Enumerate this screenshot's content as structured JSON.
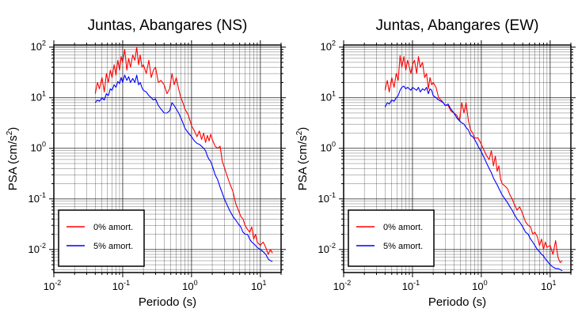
{
  "colors": {
    "undamped": "#ff0000",
    "damped": "#0000ff",
    "grid": "#000000",
    "frame": "#000000"
  },
  "chart_data": [
    {
      "type": "line",
      "title": "Juntas, Abangares (NS)",
      "xlabel": "Periodo (s)",
      "ylabel_main": "PSA (cm/s",
      "ylabel_sup": "2",
      "ylabel_close": ")",
      "xscale": "log",
      "yscale": "log",
      "xlim": [
        0.01,
        20
      ],
      "ylim": [
        0.0035,
        110
      ],
      "xticks": [
        {
          "base": "10",
          "exp": "-2"
        },
        {
          "base": "10",
          "exp": "-1"
        },
        {
          "base": "10",
          "exp": "0"
        },
        {
          "base": "10",
          "exp": "1"
        }
      ],
      "yticks": [
        {
          "base": "10",
          "exp": "-2"
        },
        {
          "base": "10",
          "exp": "-1"
        },
        {
          "base": "10",
          "exp": "0"
        },
        {
          "base": "10",
          "exp": "1"
        },
        {
          "base": "10",
          "exp": "2"
        }
      ],
      "grid": true,
      "legend_position": "bottom-left",
      "series": [
        {
          "name": "0% amort.",
          "color": "#ff0000",
          "x": [
            0.04,
            0.043,
            0.046,
            0.05,
            0.054,
            0.058,
            0.062,
            0.066,
            0.07,
            0.075,
            0.08,
            0.085,
            0.09,
            0.095,
            0.1,
            0.107,
            0.115,
            0.122,
            0.13,
            0.14,
            0.15,
            0.16,
            0.17,
            0.18,
            0.19,
            0.2,
            0.22,
            0.24,
            0.26,
            0.28,
            0.3,
            0.33,
            0.36,
            0.4,
            0.44,
            0.48,
            0.52,
            0.56,
            0.6,
            0.65,
            0.7,
            0.75,
            0.8,
            0.9,
            1.0,
            1.1,
            1.2,
            1.3,
            1.4,
            1.5,
            1.6,
            1.7,
            1.8,
            1.9,
            2.0,
            2.2,
            2.4,
            2.6,
            2.8,
            3.0,
            3.3,
            3.6,
            4.0,
            4.4,
            4.8,
            5.2,
            5.6,
            6.0,
            6.5,
            7.0,
            7.5,
            8.0,
            8.5,
            9.0,
            10.0,
            11.0,
            12.0,
            13.0,
            14.0,
            15.0
          ],
          "y": [
            12,
            20,
            15,
            25,
            13,
            30,
            20,
            35,
            25,
            45,
            28,
            55,
            35,
            65,
            50,
            90,
            35,
            60,
            40,
            70,
            55,
            100,
            45,
            70,
            40,
            45,
            30,
            55,
            25,
            35,
            40,
            20,
            22,
            18,
            12,
            15,
            30,
            18,
            25,
            15,
            10,
            8,
            6,
            4.5,
            2.8,
            2.2,
            1.7,
            2.2,
            1.5,
            2.0,
            1.3,
            1.8,
            1.4,
            1.9,
            1.5,
            1.1,
            1.0,
            1.1,
            0.55,
            0.42,
            0.28,
            0.2,
            0.14,
            0.08,
            0.06,
            0.045,
            0.04,
            0.03,
            0.025,
            0.022,
            0.028,
            0.016,
            0.02,
            0.014,
            0.012,
            0.014,
            0.011,
            0.008,
            0.01,
            0.0085
          ]
        },
        {
          "name": "5% amort.",
          "color": "#0000ff",
          "x": [
            0.04,
            0.043,
            0.046,
            0.05,
            0.054,
            0.058,
            0.062,
            0.066,
            0.07,
            0.075,
            0.08,
            0.085,
            0.09,
            0.095,
            0.1,
            0.107,
            0.115,
            0.122,
            0.13,
            0.14,
            0.15,
            0.16,
            0.17,
            0.18,
            0.19,
            0.2,
            0.22,
            0.24,
            0.26,
            0.28,
            0.3,
            0.33,
            0.36,
            0.4,
            0.44,
            0.48,
            0.52,
            0.56,
            0.6,
            0.65,
            0.7,
            0.75,
            0.8,
            0.9,
            1.0,
            1.1,
            1.2,
            1.3,
            1.4,
            1.5,
            1.6,
            1.7,
            1.8,
            1.9,
            2.0,
            2.2,
            2.4,
            2.6,
            2.8,
            3.0,
            3.3,
            3.6,
            4.0,
            4.4,
            4.8,
            5.2,
            5.6,
            6.0,
            6.5,
            7.0,
            7.5,
            8.0,
            8.5,
            9.0,
            10.0,
            11.0,
            12.0,
            13.0,
            14.0,
            15.0
          ],
          "y": [
            8,
            9,
            8.5,
            10,
            9,
            12,
            11,
            15,
            14,
            18,
            16,
            21,
            19,
            25,
            20,
            28,
            22,
            26,
            20,
            24,
            20,
            28,
            18,
            20,
            16,
            14,
            13,
            11,
            10,
            9,
            9.5,
            7,
            6,
            5,
            5,
            5.5,
            8,
            7,
            6,
            5,
            4,
            3.2,
            2.5,
            2,
            1.7,
            1.4,
            1.25,
            1.2,
            1.1,
            1.0,
            0.9,
            0.7,
            0.6,
            0.55,
            0.45,
            0.3,
            0.24,
            0.17,
            0.13,
            0.1,
            0.075,
            0.058,
            0.045,
            0.038,
            0.032,
            0.028,
            0.022,
            0.02,
            0.02,
            0.016,
            0.014,
            0.013,
            0.012,
            0.011,
            0.01,
            0.009,
            0.008,
            0.0065,
            0.006,
            0.0058
          ]
        }
      ]
    },
    {
      "type": "line",
      "title": "Juntas, Abangares (EW)",
      "xlabel": "Periodo (s)",
      "ylabel_main": "PSA (cm/s",
      "ylabel_sup": "2",
      "ylabel_close": ")",
      "xscale": "log",
      "yscale": "log",
      "xlim": [
        0.01,
        20
      ],
      "ylim": [
        0.0035,
        110
      ],
      "xticks": [
        {
          "base": "10",
          "exp": "-2"
        },
        {
          "base": "10",
          "exp": "-1"
        },
        {
          "base": "10",
          "exp": "0"
        },
        {
          "base": "10",
          "exp": "1"
        }
      ],
      "yticks": [
        {
          "base": "10",
          "exp": "-2"
        },
        {
          "base": "10",
          "exp": "-1"
        },
        {
          "base": "10",
          "exp": "0"
        },
        {
          "base": "10",
          "exp": "1"
        },
        {
          "base": "10",
          "exp": "2"
        }
      ],
      "grid": true,
      "legend_position": "bottom-left",
      "series": [
        {
          "name": "0% amort.",
          "color": "#ff0000",
          "x": [
            0.04,
            0.043,
            0.046,
            0.05,
            0.054,
            0.058,
            0.062,
            0.066,
            0.07,
            0.075,
            0.08,
            0.085,
            0.09,
            0.095,
            0.1,
            0.107,
            0.115,
            0.122,
            0.13,
            0.14,
            0.15,
            0.16,
            0.17,
            0.18,
            0.19,
            0.2,
            0.22,
            0.24,
            0.26,
            0.28,
            0.3,
            0.33,
            0.36,
            0.4,
            0.44,
            0.48,
            0.52,
            0.56,
            0.6,
            0.65,
            0.7,
            0.75,
            0.8,
            0.9,
            1.0,
            1.1,
            1.2,
            1.3,
            1.4,
            1.5,
            1.6,
            1.7,
            1.8,
            1.9,
            2.0,
            2.2,
            2.4,
            2.6,
            2.8,
            3.0,
            3.3,
            3.6,
            4.0,
            4.4,
            4.8,
            5.2,
            5.6,
            6.0,
            6.5,
            7.0,
            7.5,
            8.0,
            8.5,
            9.0,
            10.0,
            11.0,
            12.0,
            13.0,
            14.0,
            15.0
          ],
          "y": [
            14,
            22,
            13,
            25,
            16,
            30,
            22,
            68,
            40,
            65,
            35,
            55,
            40,
            30,
            45,
            55,
            30,
            65,
            40,
            50,
            25,
            30,
            15,
            25,
            18,
            20,
            16,
            10,
            9,
            8,
            7,
            7,
            5.5,
            5,
            4.5,
            3.5,
            8,
            5,
            8,
            3.5,
            2.3,
            2.0,
            1.6,
            1.6,
            1.2,
            0.9,
            0.7,
            0.6,
            0.9,
            0.45,
            0.7,
            0.35,
            0.45,
            0.25,
            0.2,
            0.18,
            0.16,
            0.12,
            0.1,
            0.08,
            0.06,
            0.07,
            0.05,
            0.035,
            0.03,
            0.028,
            0.02,
            0.022,
            0.018,
            0.012,
            0.016,
            0.01,
            0.014,
            0.011,
            0.012,
            0.008,
            0.015,
            0.007,
            0.0055,
            0.006
          ]
        },
        {
          "name": "5% amort.",
          "color": "#0000ff",
          "x": [
            0.04,
            0.043,
            0.046,
            0.05,
            0.054,
            0.058,
            0.062,
            0.066,
            0.07,
            0.075,
            0.08,
            0.085,
            0.09,
            0.095,
            0.1,
            0.107,
            0.115,
            0.122,
            0.13,
            0.14,
            0.15,
            0.16,
            0.17,
            0.18,
            0.19,
            0.2,
            0.22,
            0.24,
            0.26,
            0.28,
            0.3,
            0.33,
            0.36,
            0.4,
            0.44,
            0.48,
            0.52,
            0.56,
            0.6,
            0.65,
            0.7,
            0.75,
            0.8,
            0.9,
            1.0,
            1.1,
            1.2,
            1.3,
            1.4,
            1.5,
            1.6,
            1.7,
            1.8,
            1.9,
            2.0,
            2.2,
            2.4,
            2.6,
            2.8,
            3.0,
            3.3,
            3.6,
            4.0,
            4.4,
            4.8,
            5.2,
            5.6,
            6.0,
            6.5,
            7.0,
            7.5,
            8.0,
            8.5,
            9.0,
            10.0,
            11.0,
            12.0,
            13.0,
            14.0,
            15.0
          ],
          "y": [
            6.5,
            8,
            7.5,
            9,
            8.5,
            10,
            11,
            14,
            16,
            17,
            15,
            16,
            15,
            14,
            16,
            15,
            14,
            16,
            13,
            15,
            14,
            16,
            12,
            15,
            14,
            11,
            10,
            9,
            8.5,
            8,
            7,
            7.5,
            6,
            5,
            4,
            3.5,
            3.2,
            3,
            2.6,
            2.3,
            1.8,
            1.7,
            1.5,
            1.1,
            0.85,
            0.65,
            0.5,
            0.4,
            0.33,
            0.26,
            0.22,
            0.19,
            0.16,
            0.14,
            0.12,
            0.1,
            0.085,
            0.07,
            0.06,
            0.05,
            0.04,
            0.035,
            0.028,
            0.022,
            0.02,
            0.016,
            0.014,
            0.012,
            0.01,
            0.009,
            0.008,
            0.0075,
            0.0065,
            0.006,
            0.005,
            0.0045,
            0.0042,
            0.0042,
            0.004,
            0.0038
          ]
        }
      ]
    }
  ]
}
